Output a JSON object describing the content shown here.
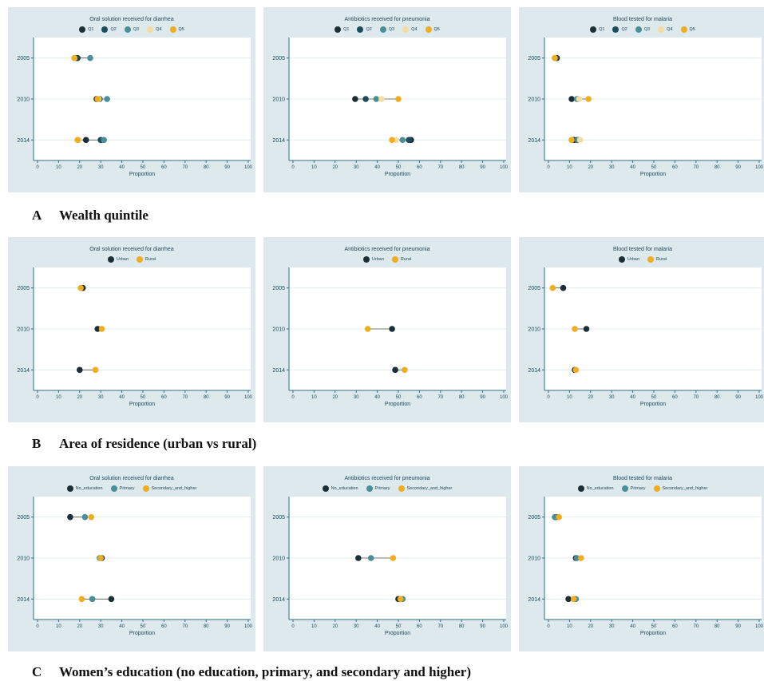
{
  "legend_sets": {
    "wealth": [
      {
        "name": "Q1",
        "color": "#1b2f36"
      },
      {
        "name": "Q2",
        "color": "#1a4d5a"
      },
      {
        "name": "Q3",
        "color": "#4a8f98"
      },
      {
        "name": "Q4",
        "color": "#f3dda0"
      },
      {
        "name": "Q5",
        "color": "#f0ad1e"
      }
    ],
    "residence": [
      {
        "name": "Urban",
        "color": "#1b2f36"
      },
      {
        "name": "Rural",
        "color": "#f0ad1e"
      }
    ],
    "education": [
      {
        "name": "No_education",
        "color": "#1b2f36"
      },
      {
        "name": "Primary",
        "color": "#4a8f98"
      },
      {
        "name": "Secondary_and_higher",
        "color": "#f0ad1e"
      }
    ]
  },
  "rows": [
    {
      "letter": "A",
      "title": "Wealth quintile",
      "legend": "wealth"
    },
    {
      "letter": "B",
      "title": "Area of residence (urban vs rural)",
      "legend": "residence"
    },
    {
      "letter": "C",
      "title": "Women’s education (no education, primary, and secondary and higher)",
      "legend": "education"
    }
  ],
  "chart_data": [
    {
      "type": "scatter",
      "title": "Oral solution received for diarrhea",
      "xlabel": "Proportion",
      "ylabel": "",
      "xlim": [
        0,
        100
      ],
      "xticks": [
        0,
        10,
        20,
        30,
        40,
        50,
        60,
        70,
        80,
        90,
        100
      ],
      "categories": [
        "2005",
        "2010",
        "2014"
      ],
      "series": [
        {
          "name": "Q1",
          "values": [
            19,
            28,
            23
          ]
        },
        {
          "name": "Q2",
          "values": [
            18.5,
            29.5,
            30
          ]
        },
        {
          "name": "Q3",
          "values": [
            25,
            33,
            31.5
          ]
        },
        {
          "name": "Q4",
          "values": [
            17.5,
            29,
            19.5
          ]
        },
        {
          "name": "Q5",
          "values": [
            17.5,
            28.5,
            19
          ]
        }
      ]
    },
    {
      "type": "scatter",
      "title": "Antibiotics received for pneumonia",
      "xlabel": "Proportion",
      "ylabel": "",
      "xlim": [
        0,
        100
      ],
      "xticks": [
        0,
        10,
        20,
        30,
        40,
        50,
        60,
        70,
        80,
        90,
        100
      ],
      "categories": [
        "2005",
        "2010",
        "2014"
      ],
      "series": [
        {
          "name": "Q1",
          "values": [
            null,
            29.5,
            56
          ]
        },
        {
          "name": "Q2",
          "values": [
            null,
            34.5,
            55
          ]
        },
        {
          "name": "Q3",
          "values": [
            null,
            39.5,
            52
          ]
        },
        {
          "name": "Q4",
          "values": [
            null,
            42,
            49
          ]
        },
        {
          "name": "Q5",
          "values": [
            null,
            50,
            47
          ]
        }
      ]
    },
    {
      "type": "scatter",
      "title": "Blood tested for malaria",
      "xlabel": "Proportion",
      "ylabel": "",
      "xlim": [
        0,
        100
      ],
      "xticks": [
        0,
        10,
        20,
        30,
        40,
        50,
        60,
        70,
        80,
        90,
        100
      ],
      "categories": [
        "2005",
        "2010",
        "2014"
      ],
      "series": [
        {
          "name": "Q1",
          "values": [
            4,
            11,
            12
          ]
        },
        {
          "name": "Q2",
          "values": [
            3.5,
            14,
            13.5
          ]
        },
        {
          "name": "Q3",
          "values": [
            3,
            13.5,
            14
          ]
        },
        {
          "name": "Q4",
          "values": [
            3,
            14.5,
            15
          ]
        },
        {
          "name": "Q5",
          "values": [
            3,
            19,
            11
          ]
        }
      ]
    },
    {
      "type": "scatter",
      "title": "Oral solution received for diarrhea",
      "xlabel": "Proportion",
      "ylabel": "",
      "xlim": [
        0,
        100
      ],
      "xticks": [
        0,
        10,
        20,
        30,
        40,
        50,
        60,
        70,
        80,
        90,
        100
      ],
      "categories": [
        "2005",
        "2010",
        "2014"
      ],
      "series": [
        {
          "name": "Urban",
          "values": [
            21.5,
            28.5,
            20
          ]
        },
        {
          "name": "Rural",
          "values": [
            20.5,
            30.5,
            27.5
          ]
        }
      ]
    },
    {
      "type": "scatter",
      "title": "Antibiotics received for pneumonia",
      "xlabel": "Proportion",
      "ylabel": "",
      "xlim": [
        0,
        100
      ],
      "xticks": [
        0,
        10,
        20,
        30,
        40,
        50,
        60,
        70,
        80,
        90,
        100
      ],
      "categories": [
        "2005",
        "2010",
        "2014"
      ],
      "series": [
        {
          "name": "Urban",
          "values": [
            null,
            47,
            48.5
          ]
        },
        {
          "name": "Rural",
          "values": [
            null,
            35.5,
            53
          ]
        }
      ]
    },
    {
      "type": "scatter",
      "title": "Blood tested for malaria",
      "xlabel": "Proportion",
      "ylabel": "",
      "xlim": [
        0,
        100
      ],
      "xticks": [
        0,
        10,
        20,
        30,
        40,
        50,
        60,
        70,
        80,
        90,
        100
      ],
      "categories": [
        "2005",
        "2010",
        "2014"
      ],
      "series": [
        {
          "name": "Urban",
          "values": [
            7,
            18,
            12.5
          ]
        },
        {
          "name": "Rural",
          "values": [
            2,
            12.5,
            13
          ]
        }
      ]
    },
    {
      "type": "scatter",
      "title": "Oral solution received for diarrhea",
      "xlabel": "Proportion",
      "ylabel": "",
      "xlim": [
        0,
        100
      ],
      "xticks": [
        0,
        10,
        20,
        30,
        40,
        50,
        60,
        70,
        80,
        90,
        100
      ],
      "categories": [
        "2005",
        "2010",
        "2014"
      ],
      "series": [
        {
          "name": "No_education",
          "values": [
            15.5,
            30.5,
            35
          ]
        },
        {
          "name": "Primary",
          "values": [
            22.5,
            29.5,
            26
          ]
        },
        {
          "name": "Secondary_and_higher",
          "values": [
            25.5,
            30,
            21
          ]
        }
      ]
    },
    {
      "type": "scatter",
      "title": "Antibiotics received for pneumonia",
      "xlabel": "Proportion",
      "ylabel": "",
      "xlim": [
        0,
        100
      ],
      "xticks": [
        0,
        10,
        20,
        30,
        40,
        50,
        60,
        70,
        80,
        90,
        100
      ],
      "categories": [
        "2005",
        "2010",
        "2014"
      ],
      "series": [
        {
          "name": "No_education",
          "values": [
            null,
            31,
            50
          ]
        },
        {
          "name": "Primary",
          "values": [
            null,
            37,
            52
          ]
        },
        {
          "name": "Secondary_and_higher",
          "values": [
            null,
            47.5,
            51
          ]
        }
      ]
    },
    {
      "type": "scatter",
      "title": "Blood tested for malaria",
      "xlabel": "Proportion",
      "ylabel": "",
      "xlim": [
        0,
        100
      ],
      "xticks": [
        0,
        10,
        20,
        30,
        40,
        50,
        60,
        70,
        80,
        90,
        100
      ],
      "categories": [
        "2005",
        "2010",
        "2014"
      ],
      "series": [
        {
          "name": "No_education",
          "values": [
            3.5,
            13,
            9.5
          ]
        },
        {
          "name": "Primary",
          "values": [
            3,
            13.5,
            13
          ]
        },
        {
          "name": "Secondary_and_higher",
          "values": [
            5,
            15.5,
            12
          ]
        }
      ]
    }
  ]
}
